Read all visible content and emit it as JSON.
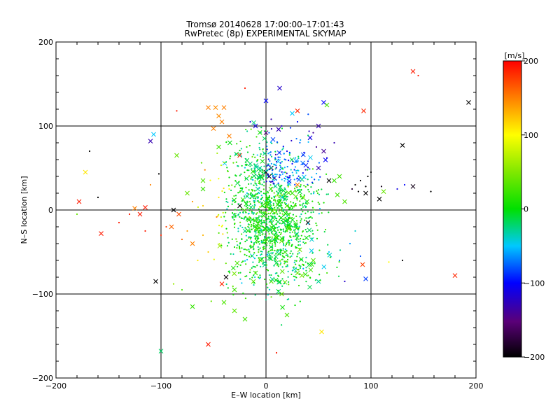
{
  "chart_data": {
    "type": "scatter",
    "title": "Tromsø 20140628 17:00:00–17:01:43",
    "subtitle": "RwPretec (8p) EXPERIMENTAL SKYMAP",
    "xlabel": "E–W location [km]",
    "ylabel": "N–S location [km]",
    "xlim": [
      -200,
      200
    ],
    "ylim": [
      -200,
      200
    ],
    "xticks": [
      "−200",
      "−100",
      "0",
      "100",
      "200"
    ],
    "yticks": [
      "−200",
      "−100",
      "0",
      "100",
      "200"
    ],
    "grid": true,
    "grid_values": [
      -100,
      0,
      100
    ],
    "colorbar": {
      "label": "[m/s]",
      "min": -200,
      "max": 200,
      "ticks": [
        "200",
        "100",
        "0",
        "−100",
        "−200"
      ],
      "colormap": "rainbow"
    },
    "markers": [
      "x",
      "dot"
    ],
    "points": [
      {
        "x": 140,
        "y": 165,
        "v": 190,
        "m": "x"
      },
      {
        "x": 193,
        "y": 128,
        "v": -200,
        "m": "x"
      },
      {
        "x": 93,
        "y": 118,
        "v": 185,
        "m": "x"
      },
      {
        "x": 130,
        "y": 77,
        "v": -200,
        "m": "x"
      },
      {
        "x": 140,
        "y": 28,
        "v": -190,
        "m": "x"
      },
      {
        "x": 112,
        "y": 22,
        "v": 40,
        "m": "x"
      },
      {
        "x": 108,
        "y": 13,
        "v": -200,
        "m": "x"
      },
      {
        "x": 180,
        "y": -78,
        "v": 185,
        "m": "x"
      },
      {
        "x": 95,
        "y": -82,
        "v": -85,
        "m": "x"
      },
      {
        "x": 92,
        "y": -65,
        "v": 175,
        "m": "x"
      },
      {
        "x": -55,
        "y": 122,
        "v": 150,
        "m": "x"
      },
      {
        "x": -48,
        "y": 122,
        "v": 145,
        "m": "x"
      },
      {
        "x": -40,
        "y": 122,
        "v": 150,
        "m": "x"
      },
      {
        "x": -45,
        "y": 112,
        "v": 145,
        "m": "x"
      },
      {
        "x": -42,
        "y": 105,
        "v": 150,
        "m": "x"
      },
      {
        "x": -50,
        "y": 97,
        "v": 150,
        "m": "x"
      },
      {
        "x": -110,
        "y": 82,
        "v": -130,
        "m": "x"
      },
      {
        "x": -107,
        "y": 90,
        "v": -50,
        "m": "x"
      },
      {
        "x": -172,
        "y": 45,
        "v": 110,
        "m": "x"
      },
      {
        "x": -178,
        "y": 10,
        "v": 190,
        "m": "x"
      },
      {
        "x": -157,
        "y": -28,
        "v": 190,
        "m": "x"
      },
      {
        "x": -120,
        "y": -5,
        "v": 190,
        "m": "x"
      },
      {
        "x": -115,
        "y": 3,
        "v": 190,
        "m": "x"
      },
      {
        "x": -125,
        "y": 2,
        "v": 150,
        "m": "x"
      },
      {
        "x": -100,
        "y": -168,
        "v": -20,
        "m": "x"
      },
      {
        "x": -105,
        "y": -85,
        "v": -200,
        "m": "x"
      },
      {
        "x": -55,
        "y": -160,
        "v": 190,
        "m": "x"
      },
      {
        "x": -38,
        "y": -80,
        "v": -200,
        "m": "x"
      },
      {
        "x": -42,
        "y": -88,
        "v": 185,
        "m": "x"
      },
      {
        "x": 53,
        "y": -145,
        "v": 110,
        "m": "x"
      },
      {
        "x": 13,
        "y": 145,
        "v": -120,
        "m": "x"
      },
      {
        "x": 0,
        "y": 130,
        "v": -100,
        "m": "x"
      },
      {
        "x": 55,
        "y": 128,
        "v": -100,
        "m": "x"
      },
      {
        "x": 58,
        "y": 125,
        "v": 30,
        "m": "x"
      },
      {
        "x": 25,
        "y": 115,
        "v": -50,
        "m": "x"
      },
      {
        "x": 30,
        "y": 118,
        "v": 185,
        "m": "x"
      },
      {
        "x": 12,
        "y": 96,
        "v": -130,
        "m": "x"
      },
      {
        "x": 0,
        "y": 92,
        "v": -150,
        "m": "x"
      },
      {
        "x": -10,
        "y": 100,
        "v": -110,
        "m": "x"
      },
      {
        "x": 5,
        "y": 50,
        "v": -200,
        "m": "x"
      },
      {
        "x": 0,
        "y": 45,
        "v": -200,
        "m": "x"
      },
      {
        "x": 3,
        "y": 40,
        "v": -200,
        "m": "x"
      },
      {
        "x": -5,
        "y": 40,
        "v": -180,
        "m": "x"
      },
      {
        "x": 8,
        "y": 38,
        "v": -160,
        "m": "x"
      },
      {
        "x": 40,
        "y": -15,
        "v": -200,
        "m": "x"
      },
      {
        "x": 30,
        "y": 30,
        "v": 150,
        "m": "x"
      },
      {
        "x": 50,
        "y": 50,
        "v": -130,
        "m": "x"
      },
      {
        "x": 55,
        "y": 70,
        "v": -140,
        "m": "x"
      },
      {
        "x": 42,
        "y": 86,
        "v": -110,
        "m": "x"
      },
      {
        "x": 50,
        "y": 100,
        "v": -130,
        "m": "x"
      },
      {
        "x": -70,
        "y": -115,
        "v": 20,
        "m": "x"
      },
      {
        "x": -40,
        "y": -110,
        "v": 30,
        "m": "x"
      },
      {
        "x": -30,
        "y": -120,
        "v": 35,
        "m": "x"
      },
      {
        "x": -20,
        "y": -130,
        "v": 25,
        "m": "x"
      },
      {
        "x": 15,
        "y": -100,
        "v": 40,
        "m": "x"
      },
      {
        "x": 20,
        "y": -125,
        "v": 30,
        "m": "x"
      },
      {
        "x": -30,
        "y": -95,
        "v": 25,
        "m": "x"
      },
      {
        "x": -60,
        "y": 25,
        "v": 20,
        "m": "x"
      },
      {
        "x": -75,
        "y": 20,
        "v": 40,
        "m": "x"
      },
      {
        "x": -88,
        "y": 0,
        "v": -200,
        "m": "x"
      },
      {
        "x": -83,
        "y": -5,
        "v": 170,
        "m": "x"
      },
      {
        "x": -90,
        "y": -20,
        "v": 160,
        "m": "x"
      },
      {
        "x": -70,
        "y": -40,
        "v": 150,
        "m": "x"
      },
      {
        "x": -85,
        "y": 65,
        "v": 40,
        "m": "x"
      },
      {
        "x": -60,
        "y": 35,
        "v": 30,
        "m": "x"
      },
      {
        "x": -45,
        "y": 75,
        "v": 25,
        "m": "x"
      },
      {
        "x": -35,
        "y": 88,
        "v": 150,
        "m": "x"
      },
      {
        "x": -25,
        "y": 65,
        "v": 190,
        "m": "x"
      },
      {
        "x": -15,
        "y": 55,
        "v": -20,
        "m": "x"
      },
      {
        "x": 70,
        "y": 40,
        "v": 25,
        "m": "x"
      },
      {
        "x": 65,
        "y": 35,
        "v": 20,
        "m": "x"
      },
      {
        "x": 75,
        "y": 10,
        "v": 30,
        "m": "x"
      },
      {
        "x": 68,
        "y": 18,
        "v": 25,
        "m": "x"
      },
      {
        "x": 95,
        "y": 20,
        "v": -200,
        "m": "x"
      },
      {
        "x": 60,
        "y": 35,
        "v": -200,
        "m": "x"
      },
      {
        "x": 25,
        "y": 20,
        "v": 20,
        "m": "x"
      },
      {
        "x": 35,
        "y": 15,
        "v": 30,
        "m": "x"
      },
      {
        "x": 45,
        "y": -60,
        "v": 35,
        "m": "x"
      },
      {
        "x": 30,
        "y": -75,
        "v": 40,
        "m": "x"
      },
      {
        "x": 50,
        "y": -85,
        "v": -30,
        "m": "x"
      },
      {
        "x": 5,
        "y": -85,
        "v": 30,
        "m": "x"
      },
      {
        "x": -10,
        "y": -75,
        "v": 20,
        "m": "x"
      },
      {
        "x": -5,
        "y": -60,
        "v": 40,
        "m": "x"
      },
      {
        "x": -25,
        "y": 5,
        "v": -200,
        "m": "x"
      },
      {
        "x": 20,
        "y": 5,
        "v": 30,
        "m": "x"
      },
      {
        "x": -160,
        "y": 15,
        "v": -200,
        "m": "dot"
      },
      {
        "x": -168,
        "y": 70,
        "v": -200,
        "m": "dot"
      },
      {
        "x": -102,
        "y": 43,
        "v": -200,
        "m": "dot"
      },
      {
        "x": 157,
        "y": 22,
        "v": -200,
        "m": "dot"
      },
      {
        "x": 132,
        "y": 30,
        "v": -100,
        "m": "dot"
      },
      {
        "x": 125,
        "y": 25,
        "v": -110,
        "m": "dot"
      },
      {
        "x": 130,
        "y": -60,
        "v": -200,
        "m": "dot"
      },
      {
        "x": 117,
        "y": -62,
        "v": 100,
        "m": "dot"
      },
      {
        "x": 145,
        "y": 160,
        "v": 190,
        "m": "dot"
      },
      {
        "x": -85,
        "y": 118,
        "v": 190,
        "m": "dot"
      },
      {
        "x": -20,
        "y": 145,
        "v": 190,
        "m": "dot"
      },
      {
        "x": 10,
        "y": -170,
        "v": 190,
        "m": "dot"
      },
      {
        "x": 95,
        "y": 28,
        "v": -200,
        "m": "dot"
      },
      {
        "x": 90,
        "y": 35,
        "v": -200,
        "m": "dot"
      },
      {
        "x": 97,
        "y": 40,
        "v": -200,
        "m": "dot"
      },
      {
        "x": 85,
        "y": 30,
        "v": -200,
        "m": "dot"
      },
      {
        "x": 100,
        "y": 45,
        "v": -200,
        "m": "dot"
      },
      {
        "x": 88,
        "y": 22,
        "v": -200,
        "m": "dot"
      },
      {
        "x": 110,
        "y": 28,
        "v": -190,
        "m": "dot"
      },
      {
        "x": 82,
        "y": 25,
        "v": -180,
        "m": "dot"
      },
      {
        "x": 65,
        "y": 80,
        "v": -130,
        "m": "dot"
      },
      {
        "x": 48,
        "y": 75,
        "v": -140,
        "m": "dot"
      },
      {
        "x": 35,
        "y": 65,
        "v": -110,
        "m": "dot"
      },
      {
        "x": 25,
        "y": 55,
        "v": -100,
        "m": "dot"
      },
      {
        "x": 40,
        "y": 58,
        "v": -90,
        "m": "dot"
      },
      {
        "x": 58,
        "y": 62,
        "v": -120,
        "m": "dot"
      },
      {
        "x": 20,
        "y": 70,
        "v": -110,
        "m": "dot"
      },
      {
        "x": 45,
        "y": 92,
        "v": -140,
        "m": "dot"
      },
      {
        "x": 15,
        "y": 100,
        "v": -120,
        "m": "dot"
      },
      {
        "x": 30,
        "y": 105,
        "v": -100,
        "m": "dot"
      },
      {
        "x": 5,
        "y": 108,
        "v": -130,
        "m": "dot"
      },
      {
        "x": -15,
        "y": 105,
        "v": -110,
        "m": "dot"
      },
      {
        "x": -130,
        "y": -5,
        "v": 190,
        "m": "dot"
      },
      {
        "x": -140,
        "y": -15,
        "v": 190,
        "m": "dot"
      },
      {
        "x": -115,
        "y": -25,
        "v": 190,
        "m": "dot"
      },
      {
        "x": -100,
        "y": -30,
        "v": 185,
        "m": "dot"
      },
      {
        "x": -95,
        "y": -20,
        "v": 175,
        "m": "dot"
      },
      {
        "x": -110,
        "y": 30,
        "v": 150,
        "m": "dot"
      },
      {
        "x": -80,
        "y": -35,
        "v": 160,
        "m": "dot"
      },
      {
        "x": -75,
        "y": -25,
        "v": 140,
        "m": "dot"
      },
      {
        "x": -60,
        "y": -30,
        "v": 130,
        "m": "dot"
      },
      {
        "x": -55,
        "y": -50,
        "v": 120,
        "m": "dot"
      },
      {
        "x": -65,
        "y": -60,
        "v": 110,
        "m": "dot"
      },
      {
        "x": -70,
        "y": 10,
        "v": 140,
        "m": "dot"
      },
      {
        "x": -60,
        "y": 5,
        "v": 120,
        "m": "dot"
      },
      {
        "x": -45,
        "y": 15,
        "v": 110,
        "m": "dot"
      },
      {
        "x": -35,
        "y": 25,
        "v": 100,
        "m": "dot"
      },
      {
        "x": -180,
        "y": -5,
        "v": 40,
        "m": "dot"
      },
      {
        "x": -88,
        "y": -88,
        "v": 60,
        "m": "dot"
      },
      {
        "x": -80,
        "y": -95,
        "v": 30,
        "m": "dot"
      },
      {
        "x": 90,
        "y": -55,
        "v": -80,
        "m": "dot"
      },
      {
        "x": 80,
        "y": -40,
        "v": -60,
        "m": "dot"
      },
      {
        "x": 85,
        "y": -25,
        "v": -40,
        "m": "dot"
      },
      {
        "x": 75,
        "y": -85,
        "v": -120,
        "m": "dot"
      },
      {
        "x": 60,
        "y": -50,
        "v": -50,
        "m": "dot"
      },
      {
        "x": 70,
        "y": -60,
        "v": -70,
        "m": "dot"
      }
    ]
  }
}
